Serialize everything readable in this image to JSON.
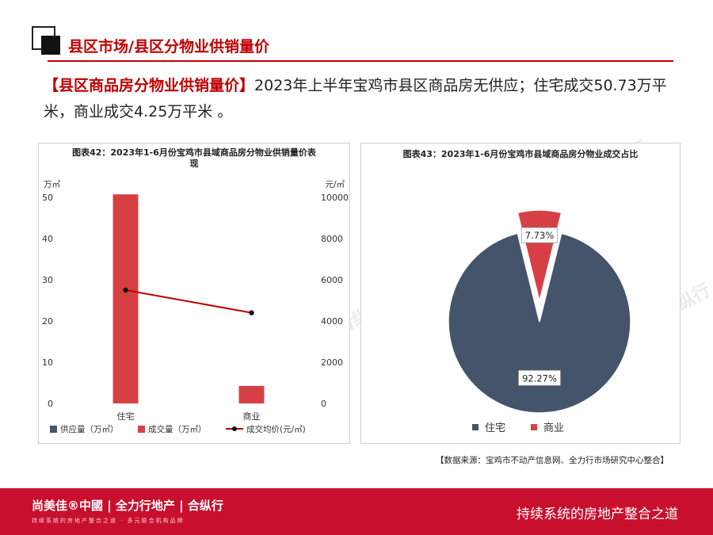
{
  "header": {
    "title": "县区市场/县区分物业供销量价"
  },
  "summary": {
    "highlight": "【县区商品房分物业供销量价】",
    "text": "2023年上半年宝鸡市县区商品房无供应；住宅成交50.73万平米，商业成交4.25万平米 。"
  },
  "source": "【数据来源：宝鸡市不动产信息网、全力行市场研究中心整合】",
  "footer": {
    "brand": "尚美佳®中國 | 全力行地产 | 合纵行",
    "brand_sub": "持续系统的房地产整合之道 · 多元联合机构品牌",
    "slogan": "持续系统的房地产整合之道"
  },
  "watermark": "尚美佳®中國 | 全力行地产 | 合纵行",
  "colors": {
    "supply": "#44546a",
    "deal": "#d64045",
    "price": "#c00000",
    "accent": "#c00000"
  },
  "chart_data": [
    {
      "type": "bar",
      "title": "图表42：2023年1-6月份宝鸡市县域商品房分物业供销量价表现",
      "categories": [
        "住宅",
        "商业"
      ],
      "y_unit": "万㎡",
      "y2_unit": "元/㎡",
      "ylim": [
        0,
        50
      ],
      "y_ticks": [
        0,
        10,
        20,
        30,
        40,
        50
      ],
      "y2lim": [
        0,
        10000
      ],
      "y2_ticks": [
        0,
        2000,
        4000,
        6000,
        8000,
        10000
      ],
      "series": [
        {
          "name": "供应量（万㎡）",
          "type": "bar",
          "axis": "left",
          "values": [
            0,
            0
          ]
        },
        {
          "name": "成交量（万㎡）",
          "type": "bar",
          "axis": "left",
          "values": [
            50.73,
            4.25
          ]
        },
        {
          "name": "成交均价(元/㎡)",
          "type": "line",
          "axis": "right",
          "values": [
            5500,
            4400
          ]
        }
      ],
      "legend": "bottom"
    },
    {
      "type": "pie",
      "title": "图表43：2023年1-6月份宝鸡市县域商品房分物业成交占比",
      "slices": [
        {
          "name": "住宅",
          "value": 92.27,
          "label": "92.27%"
        },
        {
          "name": "商业",
          "value": 7.73,
          "label": "7.73%"
        }
      ],
      "legend": "bottom"
    }
  ]
}
